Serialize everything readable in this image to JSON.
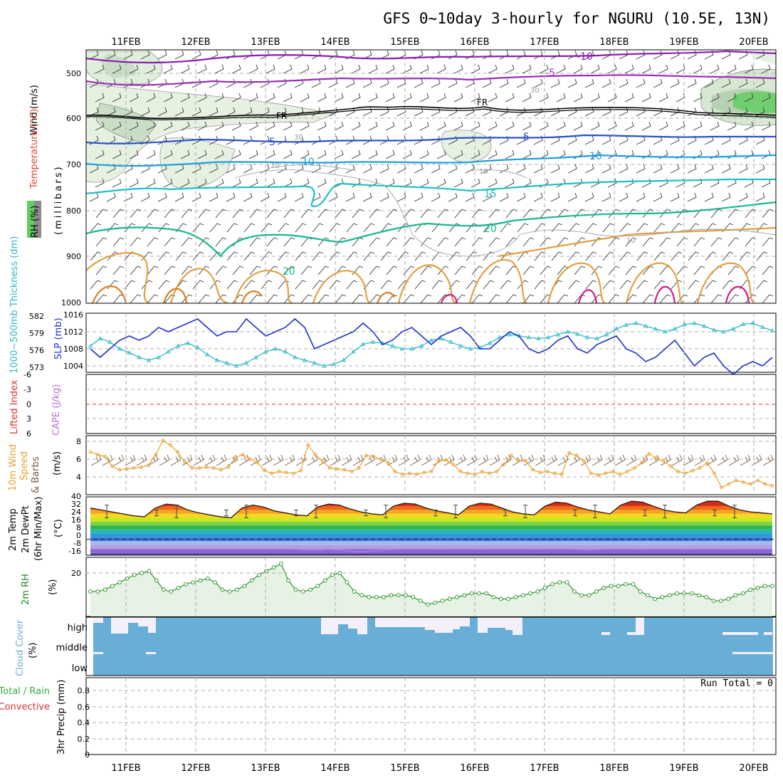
{
  "title": "GFS 0~10day 3-hourly for NGURU (10.5E, 13N)",
  "date_labels": [
    "11FEB",
    "12FEB",
    "13FEB",
    "14FEB",
    "15FEB",
    "16FEB",
    "17FEB",
    "18FEB",
    "19FEB",
    "20FEB"
  ],
  "colors": {
    "wind_label": "#000000",
    "temperature_label": "#e0443a",
    "millibars_label": "#000000",
    "slp_line": "#2030c8",
    "thickness_line": "#30b8c8",
    "wind_speed_line": "#e8a030",
    "barbs": "#7a5a40",
    "rh_line": "#208a20",
    "rh_fill": "#e6f2e4",
    "cloud": "#69aed6",
    "cloud_gap": "#f4f0fa",
    "zero_line": "#e03030"
  },
  "panels": {
    "upper_air": {
      "ylabel_parts": [
        "Wind (m/s)",
        "Temperature (°C)",
        "(millibars)",
        "RH (%)"
      ],
      "pressure_ticks": [
        "500",
        "600",
        "700",
        "800",
        "900",
        "1000"
      ],
      "contour_labels": [
        "-10",
        "-5",
        "FR",
        "FR",
        "5",
        "5",
        "10",
        "10",
        "15",
        "20",
        "20",
        "30",
        "30",
        "10",
        "10",
        "10"
      ]
    },
    "slp": {
      "ylabel_left": "1000~500mb Thickness (dm)",
      "ylabel_right": "SLP (mb)",
      "thickness_ticks": [
        "582",
        "579",
        "576",
        "573"
      ],
      "slp_ticks": [
        "1016",
        "1012",
        "1008",
        "1004"
      ]
    },
    "stability": {
      "ylabel_left": "Lifted Index",
      "ylabel_right": "CAPE (J/kg)",
      "ticks": [
        "-6",
        "-3",
        "0",
        "3",
        "6"
      ]
    },
    "wind10": {
      "ylabel_parts": [
        "10m Wind",
        "Speed",
        "& Barbs",
        "(m/s)"
      ],
      "ticks": [
        "8",
        "6",
        "4"
      ]
    },
    "temp2m": {
      "ylabel_parts": [
        "2m Temp",
        "2m DewPt",
        "(6hr Min/Max)",
        "(°C)"
      ],
      "ticks": [
        "40",
        "32",
        "24",
        "16",
        "8",
        "0",
        "-8",
        "-16"
      ]
    },
    "rh2m": {
      "ylabel_parts": [
        "2m RH",
        "(%)"
      ],
      "ticks": [
        "20"
      ]
    },
    "cloud": {
      "ylabel_parts": [
        "Cloud Cover",
        "(%)"
      ],
      "levels": [
        "high",
        "middle",
        "low"
      ]
    },
    "precip": {
      "ylabel_parts": [
        "Total / Rain",
        "Convective",
        "3hr Precip (mm)"
      ],
      "ticks": [
        "0.8",
        "0.6",
        "0.4",
        "0.2",
        "0"
      ],
      "run_total": "Run Total = 0"
    }
  },
  "chart_data": [
    {
      "type": "line",
      "title": "SLP and 1000~500mb Thickness",
      "series": [
        {
          "name": "SLP (mb)",
          "values": [
            1008,
            1006,
            1008,
            1010,
            1011,
            1010,
            1011,
            1013,
            1012,
            1013,
            1014,
            1015,
            1013,
            1011,
            1012,
            1012,
            1015,
            1013,
            1011,
            1012,
            1013,
            1015,
            1013,
            1008,
            1009,
            1010,
            1011,
            1012,
            1014,
            1012,
            1009,
            1010,
            1012,
            1013,
            1011,
            1009,
            1011,
            1012,
            1013,
            1011,
            1008,
            1008,
            1010,
            1012,
            1011,
            1008,
            1007,
            1008,
            1010,
            1011,
            1008,
            1007,
            1009,
            1010,
            1011,
            1008,
            1007,
            1005,
            1006,
            1008,
            1010,
            1007,
            1004,
            1006,
            1007,
            1004,
            1002,
            1004,
            1005,
            1004,
            1006
          ]
        },
        {
          "name": "1000~500mb Thickness (dm)",
          "values": [
            576.5,
            577.8,
            577.2,
            576,
            575.3,
            574.5,
            574,
            574.5,
            575.5,
            576.5,
            577,
            576.2,
            575,
            574,
            573.5,
            573,
            573.5,
            574.5,
            575.5,
            576,
            575.5,
            574.5,
            574,
            573.5,
            573,
            573.3,
            574,
            575.5,
            576.8,
            577.2,
            577,
            576.5,
            576,
            576,
            576.5,
            577.5,
            577.8,
            577.2,
            576.5,
            576,
            576.2,
            577,
            578,
            578.5,
            578.3,
            578,
            577.8,
            578,
            578.5,
            579,
            578.6,
            578,
            577.8,
            578.5,
            579.5,
            580.2,
            580.5,
            580,
            579.5,
            579,
            579.5,
            580.3,
            580.5,
            580,
            579.3,
            579,
            579.5,
            580.3,
            580.5,
            579.8,
            579.2
          ]
        }
      ]
    },
    {
      "type": "line",
      "title": "10m Wind Speed",
      "series": [
        {
          "name": "10m Wind Speed (m/s)",
          "values": [
            6.8,
            6.5,
            6.3,
            5.2,
            4.8,
            4.9,
            5,
            5.1,
            5.3,
            6.5,
            8.1,
            7.6,
            6.8,
            5.7,
            5,
            5,
            5.1,
            5,
            4.8,
            5.1,
            6.2,
            6.5,
            6,
            5.6,
            4.7,
            4.4,
            4.6,
            4.5,
            4.4,
            4.7,
            7.6,
            6.5,
            5.8,
            5,
            4.9,
            4.8,
            4.6,
            5,
            6.4,
            6.3,
            6,
            5.6,
            4.6,
            4.3,
            4.4,
            4.3,
            4.5,
            4.6,
            5.8,
            5.9,
            5.4,
            4.6,
            4.4,
            4.3,
            4.6,
            4.4,
            4.6,
            5.4,
            6.4,
            5.8,
            5.8,
            4.8,
            4.5,
            4.6,
            4.4,
            4.3,
            6.7,
            6.4,
            5.8,
            4.4,
            4.2,
            4.4,
            4.6,
            4.3,
            4.6,
            5,
            5.6,
            6.6,
            6.1,
            5.8,
            5.2,
            4.6,
            4.4,
            4.7,
            5,
            5.6,
            4.4,
            2.8,
            3.2,
            3.6,
            3.4,
            3.2,
            3.6,
            3.2,
            3.0
          ]
        }
      ]
    },
    {
      "type": "area",
      "title": "2m Temp",
      "series": [
        {
          "name": "2m Temp (°C)",
          "values": [
            30,
            28,
            26,
            24,
            22,
            21,
            30,
            34,
            33,
            28,
            25,
            23,
            21,
            20,
            30,
            33,
            31,
            27,
            25,
            23,
            22,
            31,
            34,
            33,
            29,
            26,
            24,
            23,
            32,
            35,
            34,
            30,
            27,
            25,
            23,
            32,
            35,
            34,
            30,
            26,
            24,
            23,
            32,
            36,
            35,
            31,
            28,
            26,
            24,
            33,
            37,
            36,
            32,
            28,
            26,
            25,
            33,
            37,
            37,
            32,
            28,
            26,
            25,
            24
          ]
        },
        {
          "name": "2m DewPt (°C)",
          "values": [
            -9,
            -10,
            -9,
            -10,
            -11,
            -10,
            -10,
            -9,
            -10,
            -11,
            -10,
            -9,
            -10,
            -10,
            -11,
            -10,
            -9,
            -10,
            -11,
            -12,
            -13,
            -13,
            -12,
            -13,
            -14,
            -15,
            -14,
            -13,
            -12,
            -11,
            -10,
            -11,
            -12,
            -11,
            -10,
            -11,
            -12,
            -11,
            -10,
            -10,
            -11,
            -12,
            -11,
            -10,
            -11,
            -12,
            -13,
            -12,
            -11,
            -10,
            -11,
            -12,
            -11,
            -10,
            -11,
            -12,
            -11,
            -10,
            -11,
            -12,
            -11,
            -10,
            -11,
            -12
          ]
        }
      ]
    },
    {
      "type": "area",
      "title": "2m RH",
      "series": [
        {
          "name": "2m RH (%)",
          "values": [
            10,
            10,
            11,
            13,
            15,
            17,
            19,
            20,
            21,
            16,
            11,
            10,
            12,
            14,
            15,
            16,
            17,
            15,
            11,
            10,
            11,
            13,
            16,
            19,
            21,
            23,
            25,
            16,
            11,
            10,
            11,
            13,
            16,
            19,
            20,
            15,
            10,
            8,
            7,
            7,
            7,
            8,
            8,
            8,
            7,
            5,
            3,
            4,
            5,
            6,
            7,
            8,
            9,
            9,
            9,
            7,
            6,
            6,
            7,
            8,
            9,
            10,
            12,
            14,
            15,
            15,
            10,
            8,
            8,
            10,
            12,
            13,
            13,
            14,
            14,
            10,
            8,
            6,
            7,
            8,
            9,
            9,
            9,
            8,
            7,
            5,
            5,
            6,
            8,
            9,
            11,
            12,
            13,
            13
          ]
        }
      ]
    }
  ]
}
